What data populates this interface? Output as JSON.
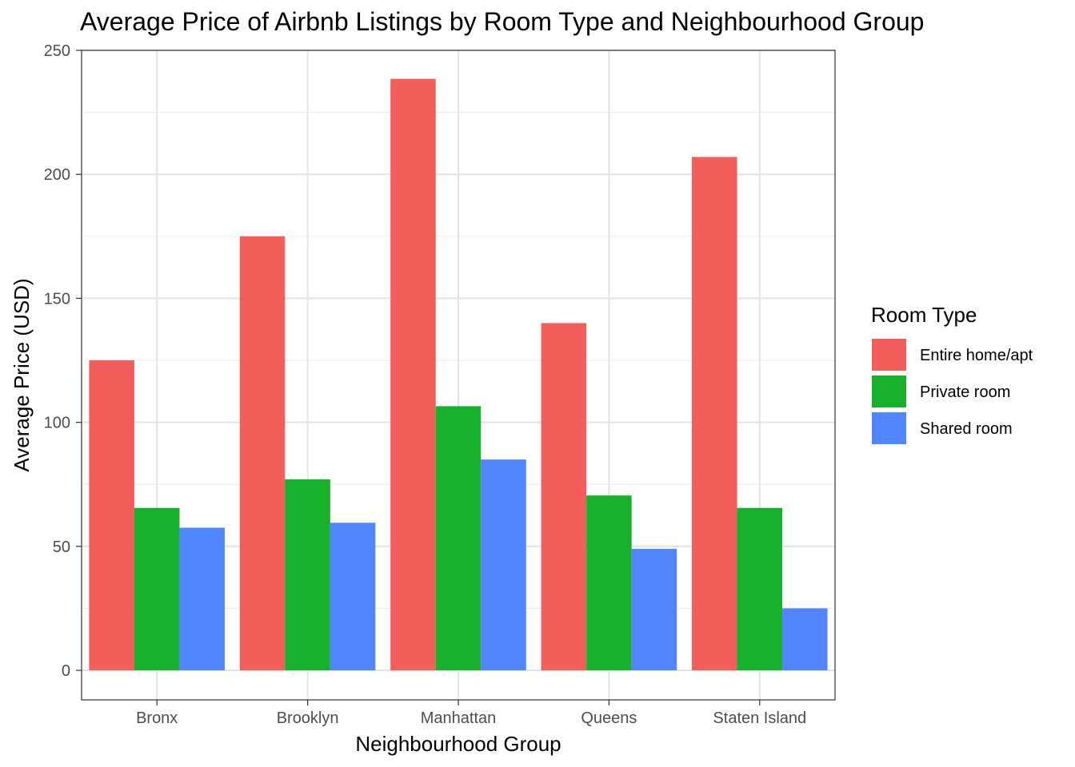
{
  "chart_data": {
    "type": "bar",
    "title": "Average Price of Airbnb Listings by Room Type and Neighbourhood Group",
    "xlabel": "Neighbourhood Group",
    "ylabel": "Average Price (USD)",
    "categories": [
      "Bronx",
      "Brooklyn",
      "Manhattan",
      "Queens",
      "Staten Island"
    ],
    "series": [
      {
        "name": "Entire home/apt",
        "color": "#F35E5A",
        "values": [
          125,
          175,
          238.5,
          140,
          207
        ]
      },
      {
        "name": "Private room",
        "color": "#17B12B",
        "values": [
          65.5,
          77,
          106.5,
          70.5,
          65.5
        ]
      },
      {
        "name": "Shared room",
        "color": "#5086FF",
        "values": [
          57.5,
          59.5,
          85,
          49,
          25
        ]
      }
    ],
    "ylim": [
      0,
      250
    ],
    "yticks": [
      0,
      50,
      100,
      150,
      200,
      250
    ],
    "grid": true,
    "legend": {
      "title": "Room Type",
      "placement": "right"
    }
  }
}
